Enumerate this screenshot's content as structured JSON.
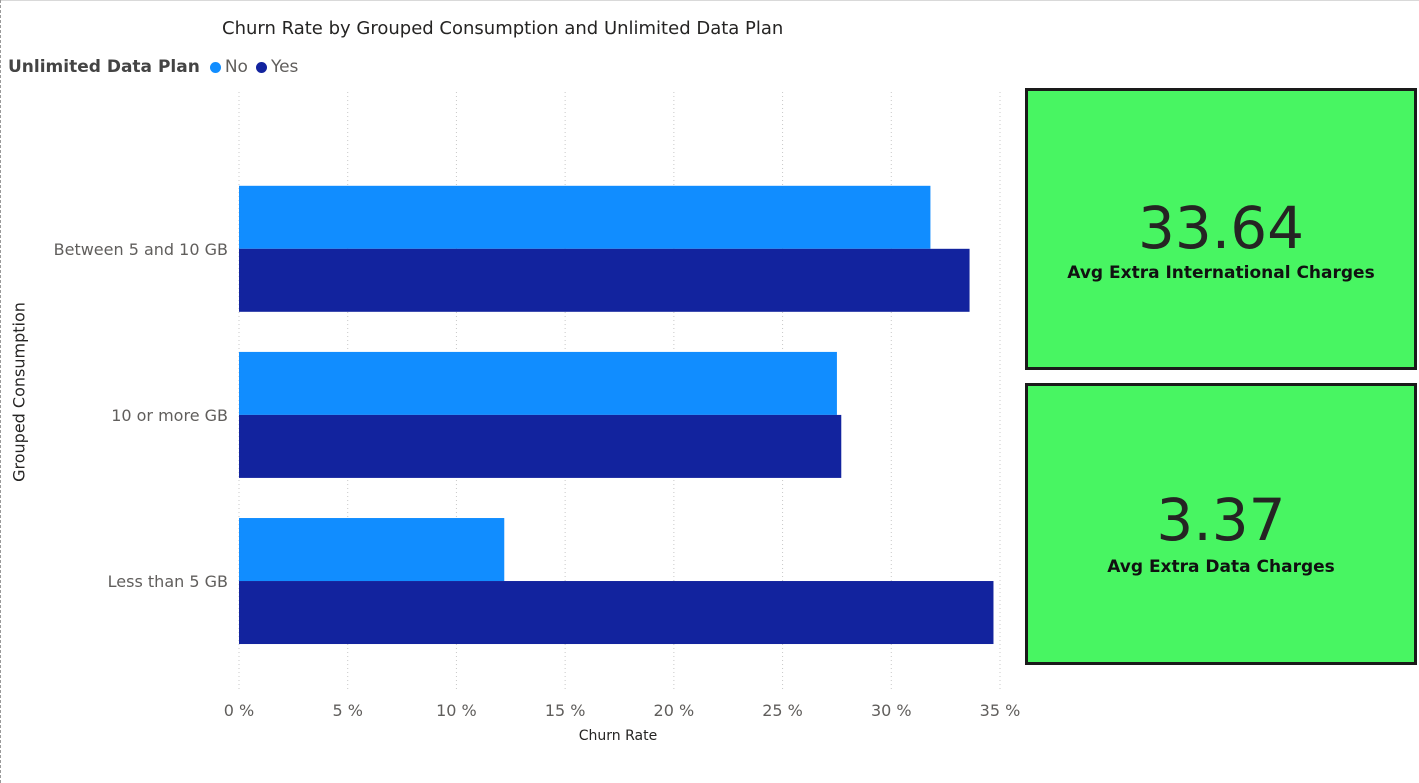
{
  "chart_data": {
    "type": "bar",
    "orientation": "horizontal",
    "title": "Churn Rate by Grouped Consumption and Unlimited Data Plan",
    "xlabel": "Churn Rate",
    "ylabel": "Grouped Consumption",
    "categories": [
      "Between 5 and 10 GB",
      "10 or more GB",
      "Less than 5 GB"
    ],
    "series": [
      {
        "name": "No",
        "color": "#118dff",
        "values": [
          31.8,
          27.5,
          12.2
        ]
      },
      {
        "name": "Yes",
        "color": "#12239e",
        "values": [
          33.6,
          27.7,
          34.7
        ]
      }
    ],
    "xlim": [
      0,
      35
    ],
    "xticks": [
      0,
      5,
      10,
      15,
      20,
      25,
      30,
      35
    ],
    "xtick_labels": [
      "0 %",
      "5 %",
      "10 %",
      "15 %",
      "20 %",
      "25 %",
      "30 %",
      "35 %"
    ],
    "grid": "vertical dotted",
    "legend": {
      "title": "Unlimited Data Plan",
      "placement": "top-left"
    }
  },
  "cards": [
    {
      "value": "33.64",
      "label": "Avg Extra International Charges"
    },
    {
      "value": "3.37",
      "label": "Avg Extra Data Charges"
    }
  ],
  "colors": {
    "card_background": "#48f562",
    "card_border": "#1a1a1a"
  }
}
